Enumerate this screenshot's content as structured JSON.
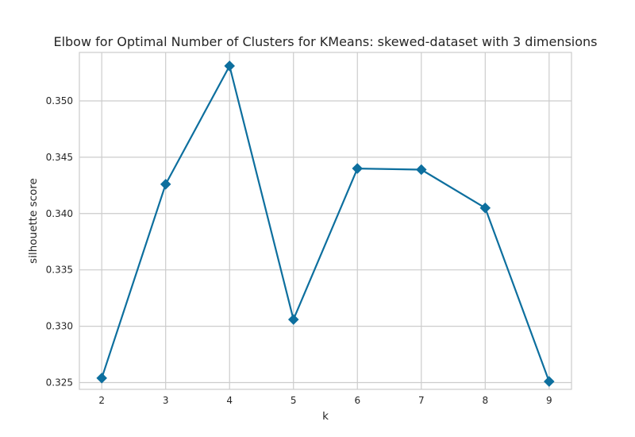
{
  "chart_data": {
    "type": "line",
    "title": "Elbow for Optimal Number of Clusters for KMeans: skewed-dataset with 3 dimensions",
    "xlabel": "k",
    "ylabel": "silhouette score",
    "x": [
      2,
      3,
      4,
      5,
      6,
      7,
      8,
      9
    ],
    "series": [
      {
        "values": [
          0.3254,
          0.3426,
          0.3531,
          0.3306,
          0.344,
          0.3439,
          0.3405,
          0.3251
        ],
        "color": "#0d6f9e",
        "marker": "diamond"
      }
    ],
    "xticks": [
      "2",
      "3",
      "4",
      "5",
      "6",
      "7",
      "8",
      "9"
    ],
    "yticks": [
      "0.325",
      "0.330",
      "0.335",
      "0.340",
      "0.345",
      "0.350"
    ],
    "xlim": [
      1.65,
      9.35
    ],
    "ylim": [
      0.3244,
      0.3543
    ],
    "grid": true
  }
}
